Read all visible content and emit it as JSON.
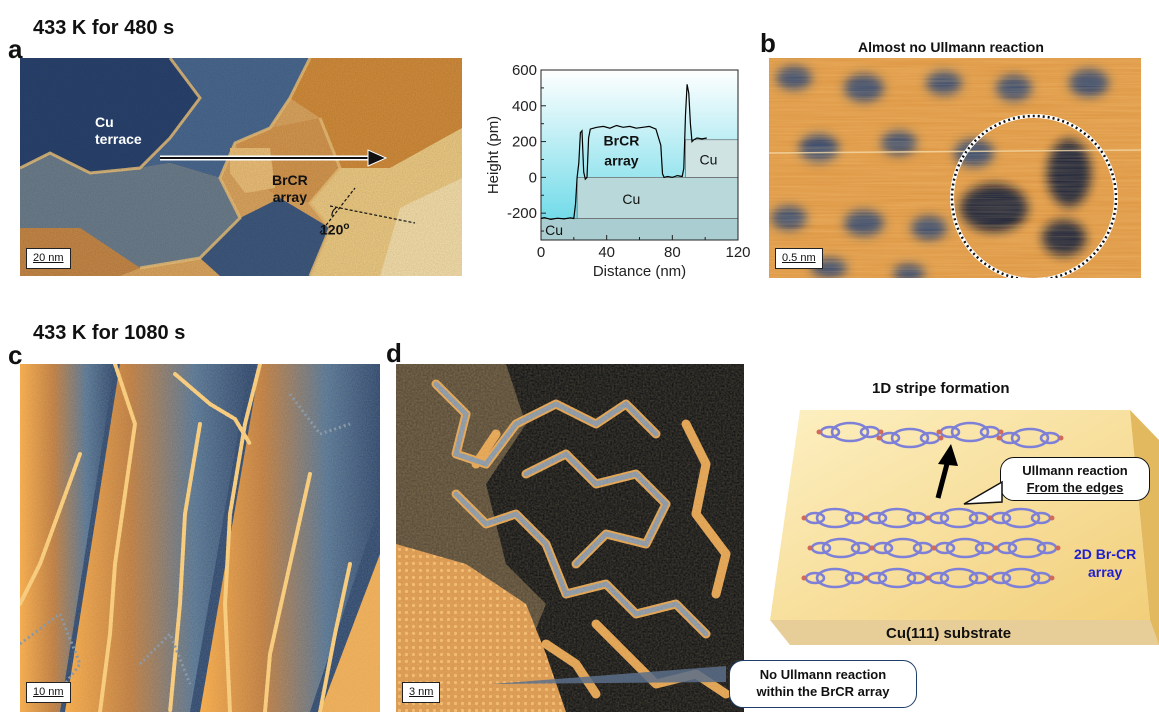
{
  "panel_a": {
    "letter": "a",
    "title": "433 K for 480 s",
    "labels": {
      "cu_line1": "Cu",
      "cu_line2": "terrace",
      "brcr_line1": "BrCR",
      "brcr_line2": "array",
      "angle": "120",
      "angle_sup": "o"
    },
    "scale": "20 nm"
  },
  "chart_data": {
    "type": "line",
    "xlabel": "Distance (nm)",
    "ylabel": "Height (pm)",
    "xlim": [
      0,
      120
    ],
    "ylim": [
      -350,
      600
    ],
    "xticks": [
      "0",
      "40",
      "80",
      "120"
    ],
    "yticks": [
      "600",
      "400",
      "200",
      "0",
      "-200"
    ],
    "regions": {
      "cu_low": "Cu",
      "cu_mid": "Cu",
      "cu_high": "Cu",
      "brcr_line1": "BrCR",
      "brcr_line2": "array"
    },
    "series": [
      {
        "x": [
          0,
          2,
          6,
          10,
          14,
          18,
          20,
          21,
          22,
          23,
          24,
          25,
          26,
          27,
          28,
          29,
          30,
          32,
          34,
          38,
          42,
          46,
          50,
          54,
          58,
          62,
          66,
          70,
          73,
          74,
          75,
          77,
          80,
          83,
          86,
          87,
          88,
          89,
          90,
          91,
          92,
          93,
          95,
          98,
          101
        ],
        "y": [
          -230,
          -225,
          -235,
          -228,
          -232,
          -226,
          -230,
          -150,
          0,
          80,
          250,
          260,
          30,
          -10,
          0,
          220,
          270,
          275,
          280,
          285,
          275,
          290,
          280,
          285,
          275,
          280,
          285,
          270,
          180,
          20,
          0,
          5,
          0,
          10,
          5,
          50,
          350,
          520,
          470,
          300,
          200,
          210,
          220,
          215,
          220
        ]
      }
    ]
  },
  "panel_b": {
    "letter": "b",
    "title": "Almost no Ullmann reaction",
    "scale": "0.5 nm"
  },
  "panel_c": {
    "letter": "c",
    "title": "433 K for 1080 s",
    "scale": "10 nm"
  },
  "panel_d": {
    "letter": "d",
    "scale": "3 nm",
    "callout_line1": "No Ullmann reaction",
    "callout_line2": "within the BrCR array"
  },
  "schematic": {
    "title": "1D stripe formation",
    "callout_line1": "Ullmann reaction",
    "callout_line2": "From the edges",
    "array_line1": "2D Br-CR",
    "array_line2": "array",
    "substrate": "Cu(111) substrate",
    "colors": {
      "array_label": "#1f1fd0",
      "plate_top": "#f6e2a0",
      "plate_side": "#e8c96a",
      "ring": "#8c8fe0"
    }
  }
}
